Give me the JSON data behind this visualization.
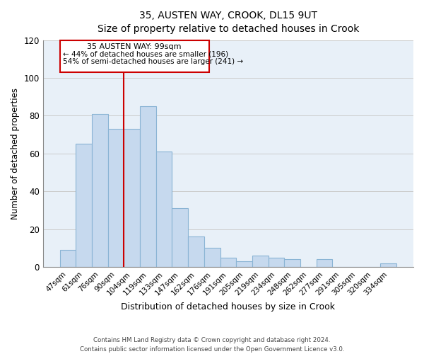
{
  "title": "35, AUSTEN WAY, CROOK, DL15 9UT",
  "subtitle": "Size of property relative to detached houses in Crook",
  "xlabel": "Distribution of detached houses by size in Crook",
  "ylabel": "Number of detached properties",
  "bar_labels": [
    "47sqm",
    "61sqm",
    "76sqm",
    "90sqm",
    "104sqm",
    "119sqm",
    "133sqm",
    "147sqm",
    "162sqm",
    "176sqm",
    "191sqm",
    "205sqm",
    "219sqm",
    "234sqm",
    "248sqm",
    "262sqm",
    "277sqm",
    "291sqm",
    "305sqm",
    "320sqm",
    "334sqm"
  ],
  "bar_values": [
    9,
    65,
    81,
    73,
    73,
    85,
    61,
    31,
    16,
    10,
    5,
    3,
    6,
    5,
    4,
    0,
    4,
    0,
    0,
    0,
    2
  ],
  "bar_color": "#c6d9ee",
  "bar_edge_color": "#8ab4d4",
  "red_line_x": 3.5,
  "annotation_title": "35 AUSTEN WAY: 99sqm",
  "annotation_line1": "← 44% of detached houses are smaller (196)",
  "annotation_line2": "54% of semi-detached houses are larger (241) →",
  "annotation_box_color": "#ffffff",
  "annotation_box_edge": "#cc0000",
  "red_line_color": "#cc0000",
  "ylim": [
    0,
    120
  ],
  "yticks": [
    0,
    20,
    40,
    60,
    80,
    100,
    120
  ],
  "background_color": "#ffffff",
  "grid_color": "#cccccc",
  "footer_line1": "Contains HM Land Registry data © Crown copyright and database right 2024.",
  "footer_line2": "Contains public sector information licensed under the Open Government Licence v3.0."
}
